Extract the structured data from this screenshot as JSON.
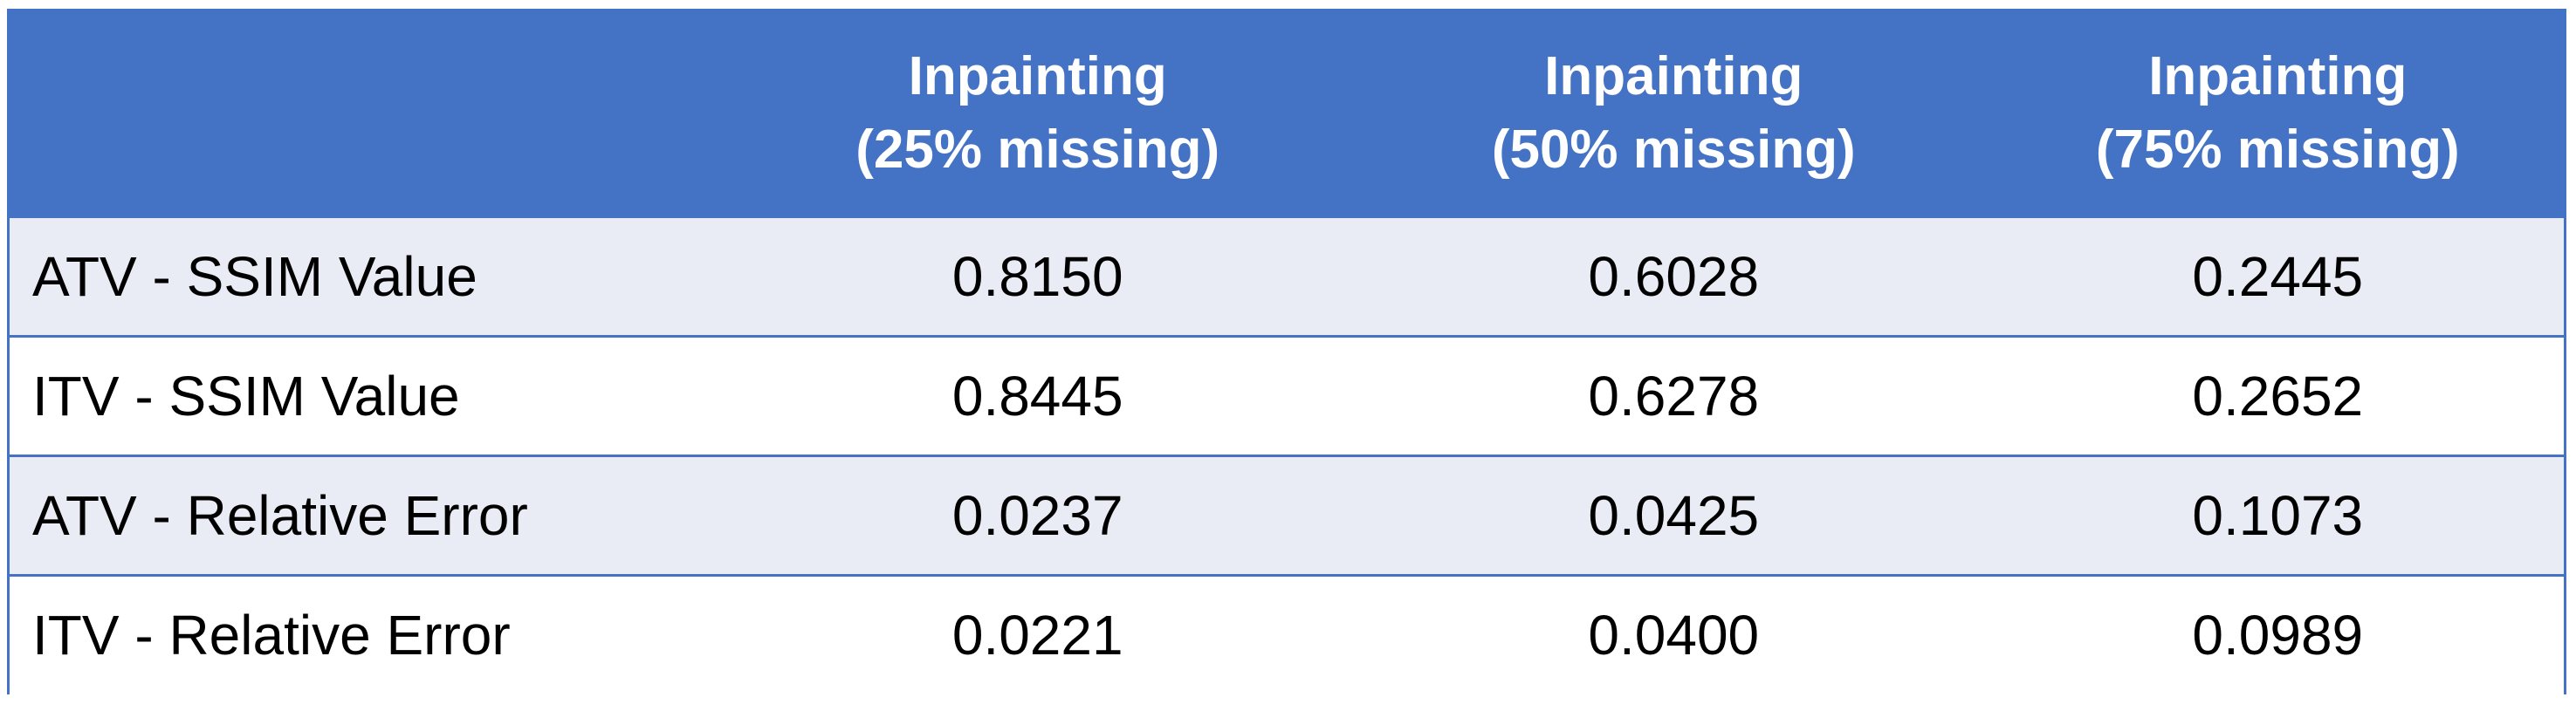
{
  "chart_data": {
    "type": "table",
    "columns": [
      "",
      "Inpainting\n(25% missing)",
      "Inpainting\n(50% missing)",
      "Inpainting\n(75% missing)"
    ],
    "header": {
      "corner": "",
      "col1": [
        "Inpainting",
        "(25% missing)"
      ],
      "col2": [
        "Inpainting",
        "(50% missing)"
      ],
      "col3": [
        "Inpainting",
        "(75% missing)"
      ]
    },
    "rows": [
      {
        "label": "ATV - SSIM Value",
        "values": [
          "0.8150",
          "0.6028",
          "0.2445"
        ]
      },
      {
        "label": "ITV - SSIM Value",
        "values": [
          "0.8445",
          "0.6278",
          "0.2652"
        ]
      },
      {
        "label": "ATV - Relative Error",
        "values": [
          "0.0237",
          "0.0425",
          "0.1073"
        ]
      },
      {
        "label": "ITV - Relative Error",
        "values": [
          "0.0221",
          "0.0400",
          "0.0989"
        ]
      }
    ],
    "colors": {
      "header_bg": "#4472c4",
      "header_text": "#ffffff",
      "band_row": "#e9ebf5",
      "plain_row": "#ffffff",
      "border": "#4472c4"
    }
  }
}
